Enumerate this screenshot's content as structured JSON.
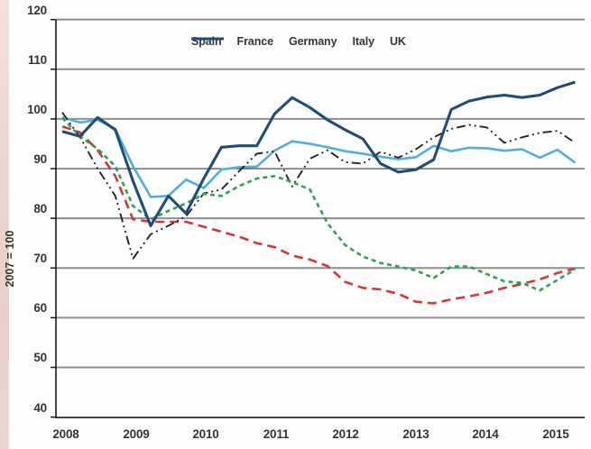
{
  "chart_data": {
    "type": "line",
    "title": "",
    "ylabel": "2007 = 100",
    "x_labels": [
      "2008",
      "2009",
      "2010",
      "2011",
      "2012",
      "2013",
      "2014",
      "2015"
    ],
    "x_frequency": "quarterly (2008Q1 - 2015Q2)",
    "yticks": [
      120,
      110,
      100,
      90,
      80,
      70,
      60,
      50,
      40
    ],
    "ylim": [
      40,
      120
    ],
    "grid": "horizontal only",
    "legend_position": "top",
    "colors": {
      "spain": "#d7352e",
      "france": "#4fafde",
      "germany": "#262626",
      "italy": "#2aa34a",
      "uk": "#1d4e79",
      "gridline": "#8f8f8f",
      "axis": "#1a1a1a",
      "edge_strip": "#ecd5cd"
    },
    "series": [
      {
        "name": "Spain",
        "color": "#d7352e",
        "style": "dashed",
        "values": [
          98.5,
          97.3,
          93.7,
          88.5,
          79.8,
          79.3,
          79.3,
          79.3,
          78.3,
          77.3,
          76.3,
          75.0,
          74.2,
          72.5,
          71.7,
          70.4,
          67.2,
          66.0,
          65.7,
          64.8,
          63.2,
          62.9,
          63.7,
          64.3,
          65.0,
          66.0,
          66.8,
          67.7,
          69.0,
          69.9
        ]
      },
      {
        "name": "France",
        "color": "#4fafde",
        "style": "solid",
        "values": [
          100.3,
          99.3,
          99.8,
          98.0,
          90.5,
          84.3,
          84.5,
          87.8,
          86.1,
          89.8,
          90.3,
          90.4,
          93.6,
          95.5,
          95.0,
          94.3,
          93.5,
          93.0,
          92.4,
          91.9,
          92.3,
          94.6,
          93.5,
          94.2,
          94.1,
          93.6,
          93.9,
          92.2,
          93.8,
          91.2
        ]
      },
      {
        "name": "Germany",
        "color": "#262626",
        "style": "dash-dot-dot",
        "values": [
          101.3,
          96.4,
          90.0,
          84.5,
          71.9,
          76.8,
          78.5,
          80.4,
          85.0,
          85.8,
          89.5,
          93.0,
          93.5,
          86.4,
          92.0,
          93.7,
          91.3,
          91.0,
          93.4,
          92.2,
          93.9,
          96.3,
          98.0,
          98.8,
          98.3,
          95.2,
          96.3,
          97.2,
          97.6,
          95.2
        ]
      },
      {
        "name": "Italy",
        "color": "#2aa34a",
        "style": "short-dash",
        "values": [
          100.2,
          96.5,
          94.0,
          90.5,
          82.5,
          79.8,
          81.5,
          83.0,
          84.9,
          84.5,
          86.5,
          88.0,
          88.5,
          87.3,
          85.8,
          79.0,
          74.6,
          72.3,
          71.0,
          70.3,
          69.5,
          68.0,
          70.3,
          70.3,
          68.8,
          67.3,
          67.0,
          65.5,
          67.6,
          69.7
        ]
      },
      {
        "name": "UK",
        "color": "#1d4e79",
        "style": "solid-thick",
        "values": [
          97.5,
          96.5,
          100.3,
          97.8,
          87.5,
          78.5,
          84.5,
          81.0,
          88.0,
          94.3,
          94.6,
          94.6,
          101.0,
          104.3,
          102.3,
          99.8,
          97.8,
          96.0,
          91.0,
          89.3,
          89.8,
          91.8,
          101.9,
          103.6,
          104.4,
          104.8,
          104.3,
          104.8,
          106.3,
          107.4
        ]
      }
    ]
  }
}
